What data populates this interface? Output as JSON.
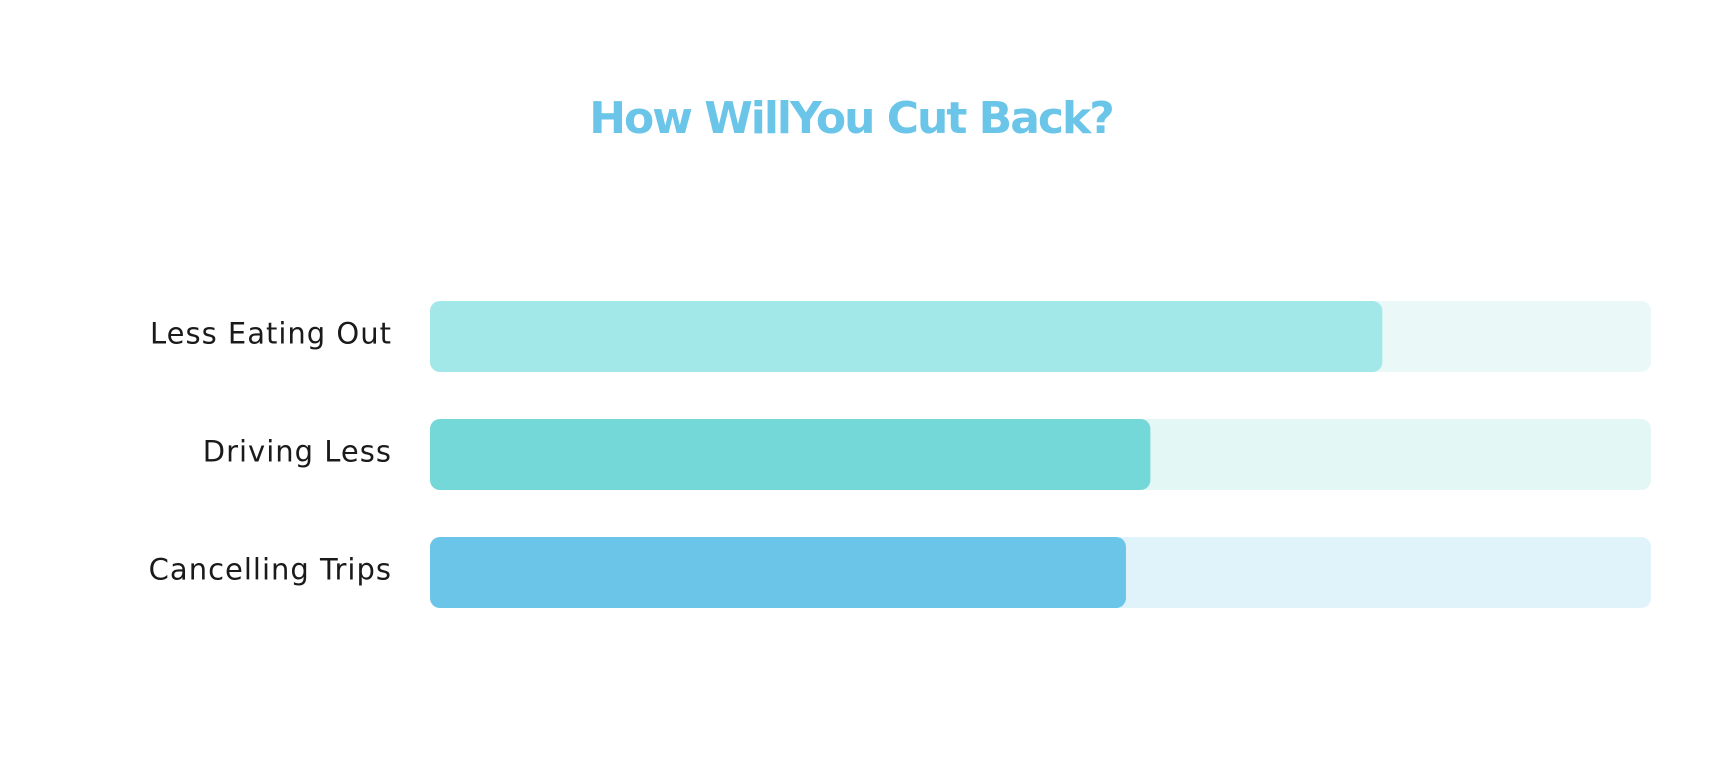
{
  "chart_data": {
    "type": "bar",
    "orientation": "horizontal",
    "title": "How WillYou Cut Back?",
    "categories": [
      "Less Eating Out",
      "Driving Less",
      "Cancelling Trips"
    ],
    "values": [
      78,
      59,
      57
    ],
    "colors": [
      "#a3e8e8",
      "#74d8d8",
      "#6ac5e8"
    ],
    "track_colors": [
      "#eaf9f8",
      "#e3f7f5",
      "#e0f3fa"
    ],
    "title_color": "#6ac5e8",
    "xlim": [
      0,
      100
    ]
  }
}
